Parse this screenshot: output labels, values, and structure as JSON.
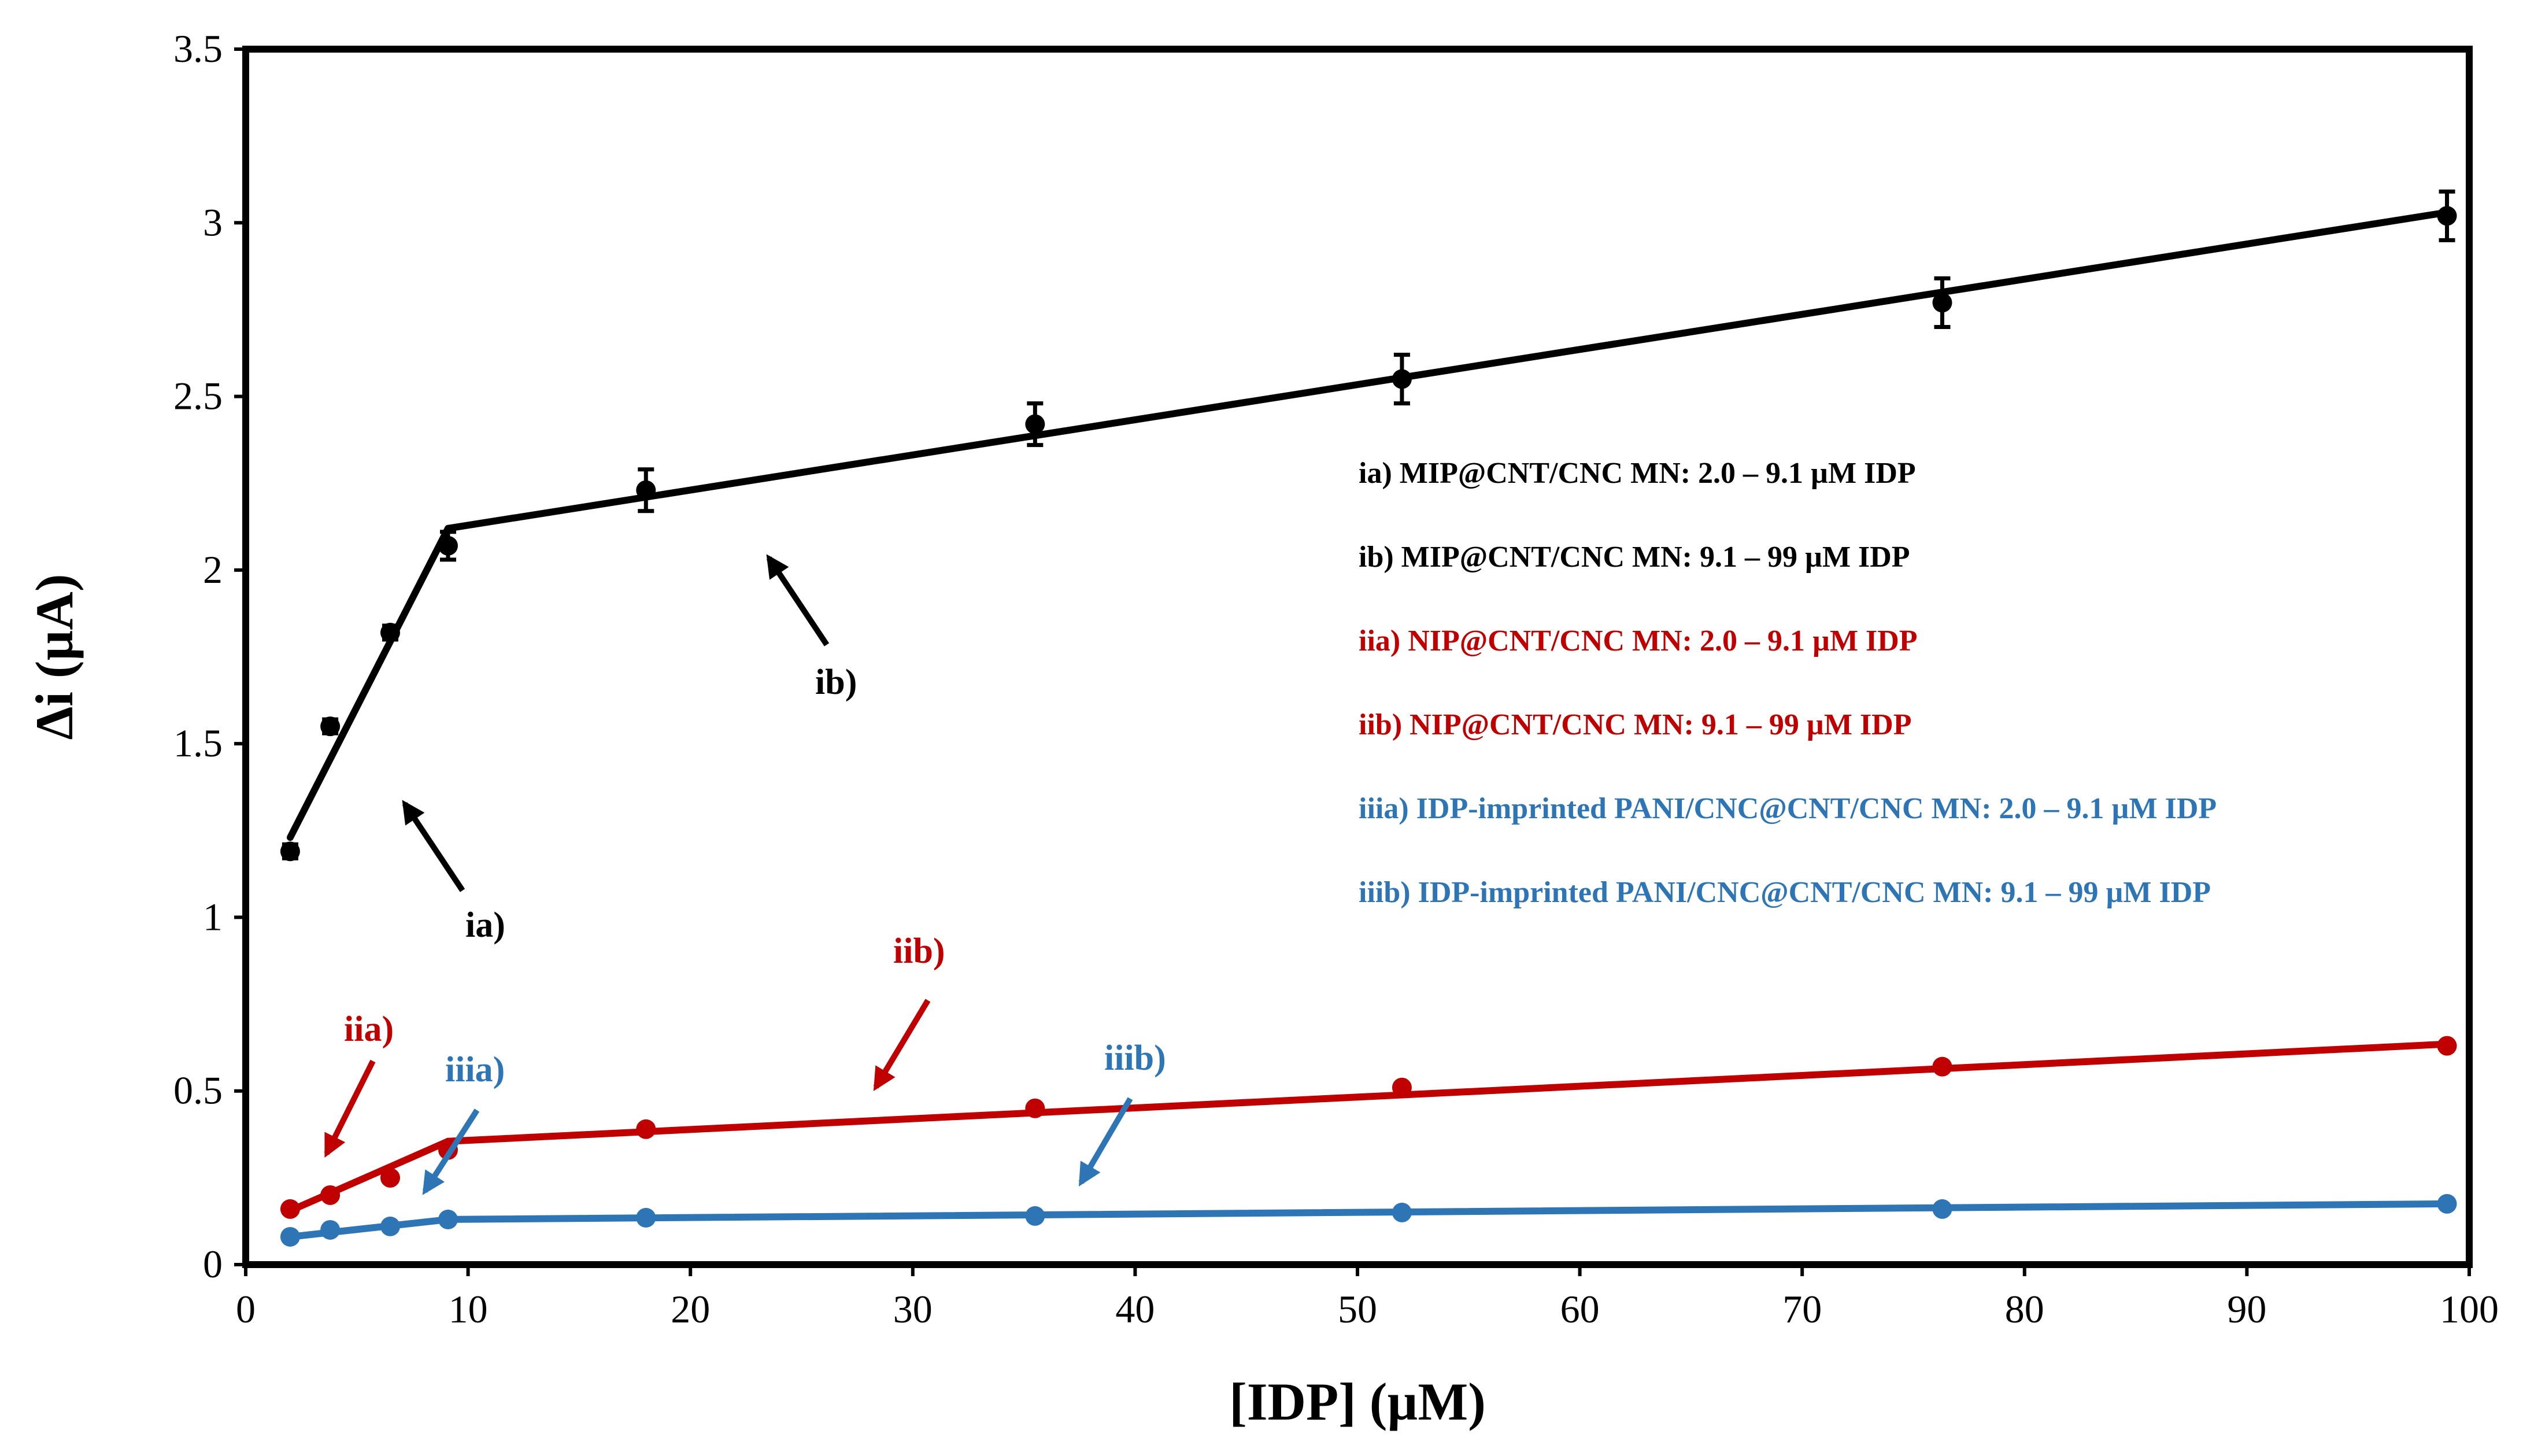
{
  "chart_data": {
    "type": "scatter",
    "title": "",
    "xlabel": "[IDP] (µM)",
    "ylabel": "Δi  (µA)",
    "xlim": [
      0,
      100
    ],
    "ylim": [
      0,
      3.5
    ],
    "xticks": [
      0,
      10,
      20,
      30,
      40,
      50,
      60,
      70,
      80,
      90,
      100
    ],
    "yticks": [
      0,
      0.5,
      1,
      1.5,
      2,
      2.5,
      3,
      3.5
    ],
    "xtick_labels": [
      "0",
      "10",
      "20",
      "30",
      "40",
      "50",
      "60",
      "70",
      "80",
      "90",
      "100"
    ],
    "ytick_labels": [
      "0",
      "0.5",
      "1",
      "1.5",
      "2",
      "2.5",
      "3",
      "3.5"
    ],
    "grid": false,
    "series": [
      {
        "key": "mip",
        "color": "#000000",
        "points": [
          {
            "x": 2.0,
            "y": 1.19,
            "err": 0.02
          },
          {
            "x": 3.8,
            "y": 1.55,
            "err": 0.02
          },
          {
            "x": 6.5,
            "y": 1.82,
            "err": 0.02
          },
          {
            "x": 9.1,
            "y": 2.07,
            "err": 0.04
          },
          {
            "x": 18.0,
            "y": 2.23,
            "err": 0.06
          },
          {
            "x": 35.5,
            "y": 2.42,
            "err": 0.06
          },
          {
            "x": 52.0,
            "y": 2.55,
            "err": 0.07
          },
          {
            "x": 76.3,
            "y": 2.77,
            "err": 0.07
          },
          {
            "x": 99.0,
            "y": 3.02,
            "err": 0.07
          }
        ],
        "fits": [
          {
            "x": [
              2.0,
              9.1
            ],
            "y": [
              1.23,
              2.12
            ]
          },
          {
            "x": [
              9.1,
              99.0
            ],
            "y": [
              2.12,
              3.03
            ]
          }
        ]
      },
      {
        "key": "nip",
        "color": "#c00000",
        "points": [
          {
            "x": 2.0,
            "y": 0.16,
            "err": 0
          },
          {
            "x": 3.8,
            "y": 0.2,
            "err": 0
          },
          {
            "x": 6.5,
            "y": 0.25,
            "err": 0
          },
          {
            "x": 9.1,
            "y": 0.33,
            "err": 0
          },
          {
            "x": 18.0,
            "y": 0.39,
            "err": 0
          },
          {
            "x": 35.5,
            "y": 0.45,
            "err": 0
          },
          {
            "x": 52.0,
            "y": 0.51,
            "err": 0
          },
          {
            "x": 76.3,
            "y": 0.57,
            "err": 0
          },
          {
            "x": 99.0,
            "y": 0.63,
            "err": 0
          }
        ],
        "fits": [
          {
            "x": [
              2.0,
              9.1
            ],
            "y": [
              0.155,
              0.355
            ]
          },
          {
            "x": [
              9.1,
              99.0
            ],
            "y": [
              0.355,
              0.635
            ]
          }
        ]
      },
      {
        "key": "pani",
        "color": "#2e75b6",
        "points": [
          {
            "x": 2.0,
            "y": 0.08,
            "err": 0
          },
          {
            "x": 3.8,
            "y": 0.1,
            "err": 0
          },
          {
            "x": 6.5,
            "y": 0.11,
            "err": 0
          },
          {
            "x": 9.1,
            "y": 0.13,
            "err": 0
          },
          {
            "x": 18.0,
            "y": 0.135,
            "err": 0
          },
          {
            "x": 35.5,
            "y": 0.14,
            "err": 0
          },
          {
            "x": 52.0,
            "y": 0.15,
            "err": 0
          },
          {
            "x": 76.3,
            "y": 0.16,
            "err": 0
          },
          {
            "x": 99.0,
            "y": 0.175,
            "err": 0
          }
        ],
        "fits": [
          {
            "x": [
              2.0,
              9.1
            ],
            "y": [
              0.08,
              0.13
            ]
          },
          {
            "x": [
              9.1,
              99.0
            ],
            "y": [
              0.13,
              0.175
            ]
          }
        ]
      }
    ],
    "legend": {
      "placement": "right",
      "entries": [
        {
          "label": "ia) MIP@CNT/CNC MN: 2.0 – 9.1 µM IDP",
          "color": "#000000"
        },
        {
          "label": "ib) MIP@CNT/CNC MN: 9.1 – 99 µM IDP",
          "color": "#000000"
        },
        {
          "label": "iia) NIP@CNT/CNC MN: 2.0 – 9.1 µM IDP",
          "color": "#c00000"
        },
        {
          "label": "iib) NIP@CNT/CNC MN: 9.1 – 99 µM IDP",
          "color": "#c00000"
        },
        {
          "label": "iiia) IDP-imprinted  PANI/CNC@CNT/CNC MN: 2.0 – 9.1 µM IDP",
          "color": "#2e75b6"
        },
        {
          "label": "iiib) IDP-imprinted  PANI/CNC@CNT/CNC MN: 9.1 – 99 µM IDP",
          "color": "#2e75b6"
        }
      ]
    },
    "annotations": [
      {
        "label": "ia)",
        "color": "#000000"
      },
      {
        "label": "ib)",
        "color": "#000000"
      },
      {
        "label": "iia)",
        "color": "#c00000"
      },
      {
        "label": "iib)",
        "color": "#c00000"
      },
      {
        "label": "iiia)",
        "color": "#2e75b6"
      },
      {
        "label": "iiib)",
        "color": "#2e75b6"
      }
    ]
  }
}
